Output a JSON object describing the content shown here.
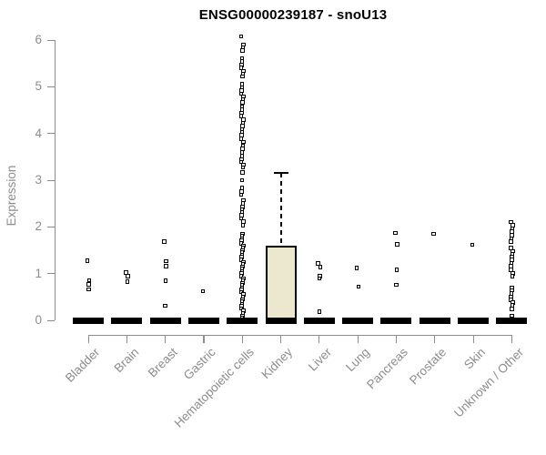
{
  "chart_data": {
    "type": "boxplot",
    "title": "ENSG00000239187 - snoU13",
    "ylabel": "Expression",
    "xlabel": "",
    "ylim": [
      0,
      6
    ],
    "yticks": [
      0,
      1,
      2,
      3,
      4,
      5,
      6
    ],
    "grid": false,
    "legend": "none",
    "categories": [
      "Bladder",
      "Brain",
      "Breast",
      "Gastric",
      "Hematopoietic cells",
      "Kidney",
      "Liver",
      "Lung",
      "Pancreas",
      "Prostate",
      "Skin",
      "Unknown / Other"
    ],
    "colors": {
      "box_fill": "#ece7cf",
      "box_border": "#000000",
      "point_border": "#000000",
      "point_fill": "#ffffff",
      "axis": "#8c8c8c",
      "title": "#000000"
    },
    "series": [
      {
        "category": "Bladder",
        "box": {
          "q1": 0,
          "median": 0,
          "q3": 0,
          "whisker_low": 0,
          "whisker_high": 0
        },
        "points": [
          1.28,
          0.86,
          0.77,
          0.66
        ]
      },
      {
        "category": "Brain",
        "box": {
          "q1": 0,
          "median": 0,
          "q3": 0,
          "whisker_low": 0,
          "whisker_high": 0
        },
        "points": [
          1.02,
          0.95,
          0.83
        ]
      },
      {
        "category": "Breast",
        "box": {
          "q1": 0,
          "median": 0,
          "q3": 0,
          "whisker_low": 0,
          "whisker_high": 0
        },
        "points": [
          1.68,
          1.27,
          1.16,
          0.85,
          0.31
        ]
      },
      {
        "category": "Gastric",
        "box": {
          "q1": 0,
          "median": 0,
          "q3": 0,
          "whisker_low": 0,
          "whisker_high": 0
        },
        "points": [
          0.62
        ]
      },
      {
        "category": "Hematopoietic cells",
        "box": {
          "q1": 0,
          "median": 0,
          "q3": 0,
          "whisker_low": 0,
          "whisker_high": 0
        },
        "points": [
          6.08,
          5.9,
          5.84,
          5.78,
          5.6,
          5.54,
          5.47,
          5.41,
          5.34,
          5.28,
          5.22,
          5.05,
          4.98,
          4.92,
          4.85,
          4.79,
          4.72,
          4.66,
          4.58,
          4.51,
          4.44,
          4.37,
          4.3,
          4.23,
          4.16,
          4.09,
          4.03,
          3.97,
          3.89,
          3.82,
          3.74,
          3.67,
          3.59,
          3.52,
          3.45,
          3.39,
          3.33,
          3.27,
          3.16,
          3.0,
          2.83,
          2.76,
          2.69,
          2.57,
          2.5,
          2.43,
          2.38,
          2.32,
          2.25,
          2.18,
          2.11,
          2.04,
          1.85,
          1.8,
          1.75,
          1.7,
          1.65,
          1.6,
          1.55,
          1.5,
          1.45,
          1.4,
          1.35,
          1.3,
          1.25,
          1.2,
          1.15,
          1.1,
          1.05,
          1.0,
          0.95,
          0.9,
          0.85,
          0.8,
          0.75,
          0.7,
          0.65,
          0.6,
          0.55,
          0.5,
          0.45,
          0.4,
          0.35,
          0.3,
          0.25,
          0.2,
          0.15,
          0.1,
          0.05,
          0.0
        ]
      },
      {
        "category": "Kidney",
        "box": {
          "q1": 0,
          "median": 0,
          "q3": 1.6,
          "whisker_low": 0,
          "whisker_high": 3.16
        },
        "points": []
      },
      {
        "category": "Liver",
        "box": {
          "q1": 0,
          "median": 0,
          "q3": 0,
          "whisker_low": 0,
          "whisker_high": 0
        },
        "points": [
          1.22,
          1.14,
          0.94,
          0.9,
          0.18
        ]
      },
      {
        "category": "Lung",
        "box": {
          "q1": 0,
          "median": 0,
          "q3": 0,
          "whisker_low": 0,
          "whisker_high": 0
        },
        "points": [
          1.12,
          0.72
        ]
      },
      {
        "category": "Pancreas",
        "box": {
          "q1": 0,
          "median": 0,
          "q3": 0,
          "whisker_low": 0,
          "whisker_high": 0
        },
        "points": [
          1.87,
          1.63,
          1.08,
          0.76
        ]
      },
      {
        "category": "Prostate",
        "box": {
          "q1": 0,
          "median": 0,
          "q3": 0,
          "whisker_low": 0,
          "whisker_high": 0
        },
        "points": [
          1.85
        ]
      },
      {
        "category": "Skin",
        "box": {
          "q1": 0,
          "median": 0,
          "q3": 0,
          "whisker_low": 0,
          "whisker_high": 0
        },
        "points": [
          1.62
        ]
      },
      {
        "category": "Unknown / Other",
        "box": {
          "q1": 0,
          "median": 0,
          "q3": 0,
          "whisker_low": 0,
          "whisker_high": 0
        },
        "points": [
          2.1,
          2.04,
          1.97,
          1.9,
          1.82,
          1.75,
          1.69,
          1.55,
          1.48,
          1.42,
          1.36,
          1.29,
          1.22,
          1.16,
          1.08,
          1.0,
          0.94,
          0.7,
          0.64,
          0.57,
          0.51,
          0.44,
          0.38,
          0.32,
          0.24,
          0.1
        ]
      }
    ]
  }
}
